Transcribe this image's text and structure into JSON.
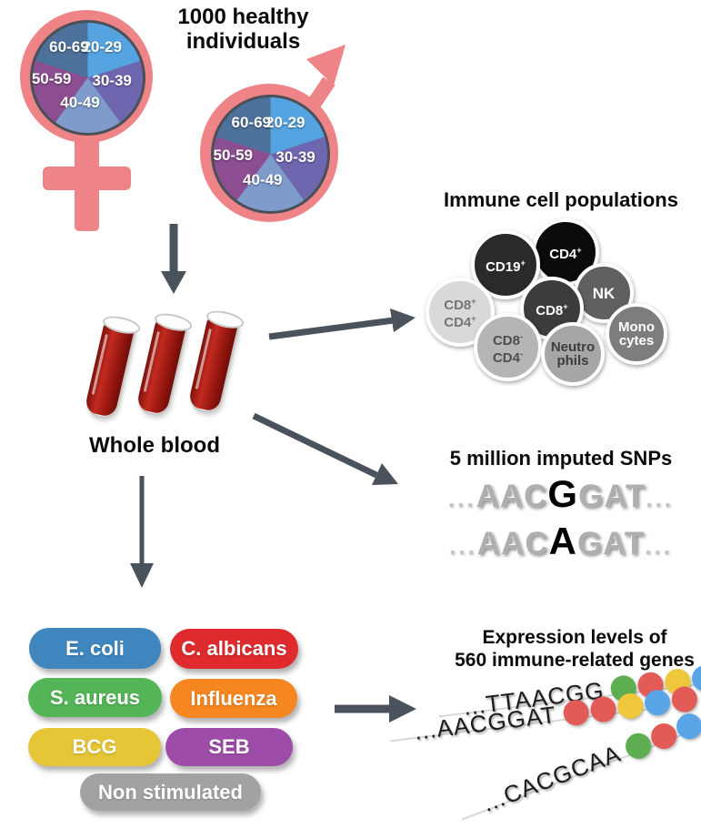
{
  "cohort": {
    "title_line1": "1000 healthy",
    "title_line2": "individuals",
    "symbol_color": "#EE8487",
    "age_groups": [
      {
        "label": "20-29",
        "color": "#55A4E1"
      },
      {
        "label": "30-39",
        "color": "#6F66B0"
      },
      {
        "label": "40-49",
        "color": "#7E9BCB"
      },
      {
        "label": "50-59",
        "color": "#8C4E90"
      },
      {
        "label": "60-69",
        "color": "#4C719B"
      }
    ]
  },
  "flow": {
    "arrow_color": "#4A525B"
  },
  "blood": {
    "label": "Whole blood",
    "tube_color": "#C22A20"
  },
  "immune": {
    "title": "Immune cell populations",
    "cells": [
      {
        "id": "cd4",
        "lines": [
          "CD4+"
        ],
        "bg": "#0B0B0B",
        "fg": "#FFFFFF"
      },
      {
        "id": "nk",
        "lines": [
          "NK"
        ],
        "bg": "#606060",
        "fg": "#FFFFFF"
      },
      {
        "id": "cd19",
        "lines": [
          "CD19+"
        ],
        "bg": "#2A2A2A",
        "fg": "#FFFFFF"
      },
      {
        "id": "mono",
        "lines": [
          "Mono",
          "cytes"
        ],
        "bg": "#7D7D7D",
        "fg": "#FFFFFF"
      },
      {
        "id": "cd8",
        "lines": [
          "CD8+"
        ],
        "bg": "#3C3C3C",
        "fg": "#FFFFFF"
      },
      {
        "id": "cd8cd4pos",
        "lines": [
          "CD8+",
          "CD4+"
        ],
        "bg": "#D9D9D9",
        "fg": "#757575"
      },
      {
        "id": "cd8cd4neg",
        "lines": [
          "CD8-",
          "CD4-"
        ],
        "bg": "#B5B5B5",
        "fg": "#4F4F4F"
      },
      {
        "id": "neutro",
        "lines": [
          "Neutro",
          "phils"
        ],
        "bg": "#A6A6A6",
        "fg": "#3C3C3C"
      }
    ]
  },
  "snps": {
    "title": "5 million imputed SNPs",
    "ellipsis": "...",
    "sequences": [
      {
        "pre": "AAC",
        "variant": "G",
        "post": "GAT"
      },
      {
        "pre": "AAC",
        "variant": "A",
        "post": "GAT"
      }
    ]
  },
  "stimuli": {
    "items": [
      {
        "label": "E. coli",
        "color": "#3F86BE"
      },
      {
        "label": "C. albicans",
        "color": "#DF2B2E"
      },
      {
        "label": "S. aureus",
        "color": "#53B556"
      },
      {
        "label": "Influenza",
        "color": "#F6861F"
      },
      {
        "label": "BCG",
        "color": "#E5C637"
      },
      {
        "label": "SEB",
        "color": "#9D4DA8"
      },
      {
        "label": "Non stimulated",
        "color": "#A2A2A2"
      }
    ]
  },
  "expression": {
    "title_line1": "Expression levels of",
    "title_line2": "560 immune-related genes",
    "palette": {
      "green": "#5CAE50",
      "red": "#E25B56",
      "yellow": "#EEC73B",
      "blue": "#5AA4E8"
    },
    "rows": [
      {
        "seq": "...TTAACGG",
        "dots": [
          "green",
          "red",
          "yellow",
          "blue",
          "blue"
        ]
      },
      {
        "seq": "...AACGGAT",
        "dots": [
          "red",
          "red",
          "yellow",
          "blue",
          "red"
        ]
      },
      {
        "seq": "...CACGCAA",
        "dots": [
          "green",
          "red",
          "blue",
          "red",
          "red"
        ]
      }
    ]
  }
}
